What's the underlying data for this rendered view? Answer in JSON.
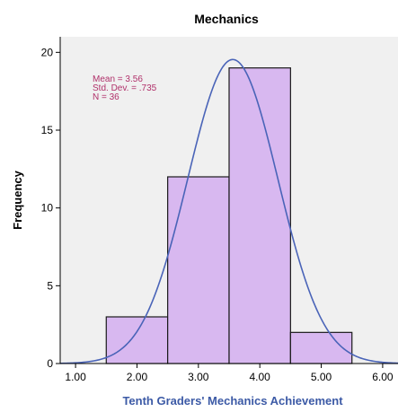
{
  "chart_data": {
    "type": "bar",
    "subtype": "histogram",
    "title": "Mechanics",
    "xlabel": "Tenth Graders' Mechanics Achievement",
    "ylabel": "Frequency",
    "bins": [
      {
        "x0": 1.5,
        "x1": 2.5,
        "count": 3
      },
      {
        "x0": 2.5,
        "x1": 3.5,
        "count": 12
      },
      {
        "x0": 3.5,
        "x1": 4.5,
        "count": 19
      },
      {
        "x0": 4.5,
        "x1": 5.5,
        "count": 2
      }
    ],
    "x_ticks": [
      "1.00",
      "2.00",
      "3.00",
      "4.00",
      "5.00",
      "6.00"
    ],
    "y_ticks": [
      "0",
      "5",
      "10",
      "15",
      "20"
    ],
    "xlim": [
      0.75,
      6.25
    ],
    "ylim": [
      0,
      21
    ],
    "normal_curve": {
      "mean": 3.56,
      "sd": 0.735,
      "n": 36,
      "bin_width": 1
    },
    "stats_lines": [
      "Mean = 3.56",
      "Std. Dev. = .735",
      "N = 36"
    ],
    "grid": false,
    "colors": {
      "bar_fill": "#d8b8f0",
      "bar_stroke": "#1a1a1a",
      "curve": "#4a64b8",
      "plot_bg": "#f0f0f0",
      "stats_text": "#b0306a",
      "xlabel_text": "#3c5aa6"
    }
  }
}
